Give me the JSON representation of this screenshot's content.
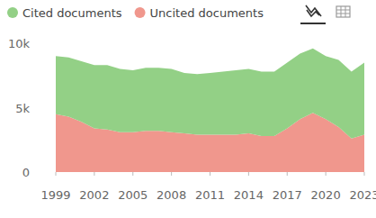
{
  "chart_data": {
    "type": "area",
    "stacked": true,
    "legend": "top-left",
    "grid": false,
    "x": [
      1999,
      2000,
      2001,
      2002,
      2003,
      2004,
      2005,
      2006,
      2007,
      2008,
      2009,
      2010,
      2011,
      2012,
      2013,
      2014,
      2015,
      2016,
      2017,
      2018,
      2019,
      2020,
      2021,
      2022,
      2023
    ],
    "xlim": [
      1999,
      2023
    ],
    "xticks": [
      1999,
      2002,
      2005,
      2008,
      2011,
      2014,
      2017,
      2020,
      2023
    ],
    "ylim": [
      0,
      10000
    ],
    "yticks": [
      0,
      {
        "value": 5000,
        "label": "5k"
      },
      {
        "value": 10000,
        "label": "10k"
      }
    ],
    "series": [
      {
        "name": "Cited documents",
        "color": "#93d086",
        "values": [
          4500,
          4600,
          4700,
          4900,
          5000,
          4900,
          4800,
          4900,
          4900,
          4900,
          4700,
          4700,
          4800,
          4900,
          5000,
          5000,
          5000,
          5000,
          5100,
          5100,
          5000,
          4900,
          5200,
          5200,
          5600
        ]
      },
      {
        "name": "Uncited documents",
        "color": "#f0978d",
        "values": [
          4500,
          4300,
          3900,
          3400,
          3300,
          3100,
          3100,
          3200,
          3200,
          3100,
          3000,
          2900,
          2900,
          2900,
          2900,
          3000,
          2800,
          2800,
          3400,
          4100,
          4600,
          4100,
          3500,
          2600,
          2900
        ]
      }
    ]
  }
}
